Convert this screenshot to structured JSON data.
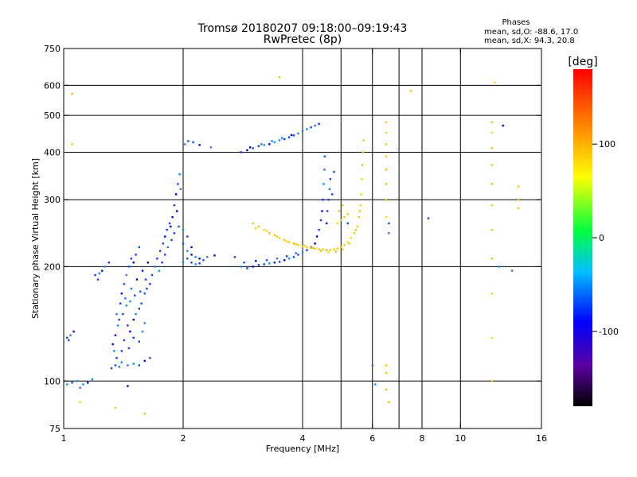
{
  "header": {
    "title_line1": "Tromsø 20180207 09:18:00–09:19:43",
    "title_line2": "RwPretec (8p)",
    "stats_title": "Phases",
    "stats_line1": "mean, sd,O: -88.6, 17.0",
    "stats_line2": "mean, sd,X:  94.3, 20.8"
  },
  "colorbar": {
    "label": "[deg]",
    "ticks": [
      "100",
      "0",
      "-100"
    ],
    "tick_values": [
      100,
      0,
      -100
    ],
    "range": [
      -180,
      180
    ]
  },
  "chart_data": {
    "type": "scatter",
    "xlabel": "Frequency [MHz]",
    "ylabel": "Stationary phase Virtual Height [km]",
    "xscale": "log",
    "yscale": "log",
    "xlim": [
      1,
      16
    ],
    "ylim": [
      75,
      750
    ],
    "xticks": [
      1,
      2,
      4,
      6,
      8,
      10,
      16
    ],
    "xtick_labels": [
      "1",
      "2",
      "4",
      "6",
      "8",
      "10",
      "16"
    ],
    "yticks": [
      75,
      100,
      200,
      300,
      400,
      500,
      600,
      750
    ],
    "ytick_labels": [
      "75",
      "100",
      "200",
      "300",
      "400",
      "500",
      "600",
      "750"
    ],
    "grid_x": [
      2,
      4,
      5,
      6,
      7,
      8,
      10
    ],
    "grid_y": [
      100,
      200,
      300,
      400,
      500,
      600
    ],
    "series": [
      {
        "trace": "O",
        "points": [
          [
            1.0,
            100
          ],
          [
            1.02,
            98
          ],
          [
            1.05,
            99
          ],
          [
            1.08,
            100
          ],
          [
            1.12,
            98
          ],
          [
            1.15,
            99
          ],
          [
            1.18,
            101
          ],
          [
            1.02,
            130
          ],
          [
            1.04,
            132
          ],
          [
            1.06,
            135
          ],
          [
            1.03,
            128
          ],
          [
            1.2,
            190
          ],
          [
            1.22,
            185
          ],
          [
            1.25,
            195
          ],
          [
            1.27,
            200
          ],
          [
            1.3,
            205
          ],
          [
            1.23,
            192
          ],
          [
            1.32,
            108
          ],
          [
            1.35,
            110
          ],
          [
            1.38,
            109
          ],
          [
            1.4,
            112
          ],
          [
            1.45,
            110
          ],
          [
            1.5,
            111
          ],
          [
            1.55,
            110
          ],
          [
            1.6,
            113
          ],
          [
            1.65,
            115
          ],
          [
            1.36,
            115
          ],
          [
            1.34,
            120
          ],
          [
            1.33,
            125
          ],
          [
            1.35,
            132
          ],
          [
            1.37,
            140
          ],
          [
            1.36,
            150
          ],
          [
            1.39,
            160
          ],
          [
            1.4,
            170
          ],
          [
            1.42,
            180
          ],
          [
            1.44,
            190
          ],
          [
            1.46,
            200
          ],
          [
            1.48,
            210
          ],
          [
            1.5,
            205
          ],
          [
            1.52,
            215
          ],
          [
            1.55,
            225
          ],
          [
            1.45,
            140
          ],
          [
            1.47,
            135
          ],
          [
            1.5,
            145
          ],
          [
            1.52,
            150
          ],
          [
            1.55,
            155
          ],
          [
            1.57,
            160
          ],
          [
            1.6,
            170
          ],
          [
            1.62,
            175
          ],
          [
            1.43,
            165
          ],
          [
            1.48,
            175
          ],
          [
            1.53,
            185
          ],
          [
            1.58,
            195
          ],
          [
            1.63,
            205
          ],
          [
            1.65,
            180
          ],
          [
            1.67,
            190
          ],
          [
            1.4,
            120
          ],
          [
            1.42,
            128
          ],
          [
            1.46,
            122
          ],
          [
            1.5,
            130
          ],
          [
            1.55,
            127
          ],
          [
            1.58,
            135
          ],
          [
            1.6,
            142
          ],
          [
            1.38,
            145
          ],
          [
            1.41,
            150
          ],
          [
            1.44,
            158
          ],
          [
            1.47,
            162
          ],
          [
            1.51,
            168
          ],
          [
            1.56,
            172
          ],
          [
            1.61,
            185
          ],
          [
            1.7,
            200
          ],
          [
            1.72,
            210
          ],
          [
            1.75,
            220
          ],
          [
            1.78,
            230
          ],
          [
            1.8,
            240
          ],
          [
            1.82,
            250
          ],
          [
            1.85,
            260
          ],
          [
            1.88,
            270
          ],
          [
            1.9,
            290
          ],
          [
            1.92,
            310
          ],
          [
            1.94,
            330
          ],
          [
            1.96,
            350
          ],
          [
            1.97,
            320
          ],
          [
            1.93,
            280
          ],
          [
            1.86,
            255
          ],
          [
            1.74,
            195
          ],
          [
            1.77,
            205
          ],
          [
            1.8,
            215
          ],
          [
            1.83,
            225
          ],
          [
            1.87,
            235
          ],
          [
            1.9,
            245
          ],
          [
            1.95,
            255
          ],
          [
            2.0,
            230
          ],
          [
            2.05,
            220
          ],
          [
            2.1,
            215
          ],
          [
            2.15,
            212
          ],
          [
            2.2,
            210
          ],
          [
            2.25,
            208
          ],
          [
            2.3,
            212
          ],
          [
            2.4,
            214
          ],
          [
            2.0,
            205
          ],
          [
            2.05,
            210
          ],
          [
            2.1,
            205
          ],
          [
            2.15,
            203
          ],
          [
            2.2,
            204
          ],
          [
            2.1,
            225
          ],
          [
            2.0,
            250
          ],
          [
            2.05,
            240
          ],
          [
            2.02,
            420
          ],
          [
            2.06,
            428
          ],
          [
            2.12,
            425
          ],
          [
            2.2,
            418
          ],
          [
            2.35,
            412
          ],
          [
            2.8,
            200
          ],
          [
            2.9,
            198
          ],
          [
            3.0,
            200
          ],
          [
            3.1,
            202
          ],
          [
            3.2,
            203
          ],
          [
            3.3,
            204
          ],
          [
            3.4,
            205
          ],
          [
            3.5,
            206
          ],
          [
            3.6,
            208
          ],
          [
            3.7,
            210
          ],
          [
            3.8,
            212
          ],
          [
            3.9,
            215
          ],
          [
            4.0,
            218
          ],
          [
            4.1,
            221
          ],
          [
            4.2,
            225
          ],
          [
            4.3,
            230
          ],
          [
            4.35,
            240
          ],
          [
            4.4,
            250
          ],
          [
            4.45,
            265
          ],
          [
            4.48,
            280
          ],
          [
            4.5,
            300
          ],
          [
            4.52,
            330
          ],
          [
            4.54,
            360
          ],
          [
            4.55,
            390
          ],
          [
            4.6,
            260
          ],
          [
            4.62,
            280
          ],
          [
            4.65,
            300
          ],
          [
            4.68,
            320
          ],
          [
            4.7,
            340
          ],
          [
            2.85,
            205
          ],
          [
            3.05,
            207
          ],
          [
            3.25,
            208
          ],
          [
            3.45,
            210
          ],
          [
            3.65,
            213
          ],
          [
            3.85,
            217
          ],
          [
            2.8,
            400
          ],
          [
            2.9,
            405
          ],
          [
            3.0,
            410
          ],
          [
            3.1,
            415
          ],
          [
            3.2,
            418
          ],
          [
            3.3,
            420
          ],
          [
            3.4,
            425
          ],
          [
            3.5,
            430
          ],
          [
            3.6,
            433
          ],
          [
            3.7,
            438
          ],
          [
            3.8,
            443
          ],
          [
            3.9,
            448
          ],
          [
            4.0,
            455
          ],
          [
            4.1,
            460
          ],
          [
            4.2,
            465
          ],
          [
            4.3,
            470
          ],
          [
            4.4,
            475
          ],
          [
            2.95,
            412
          ],
          [
            3.15,
            420
          ],
          [
            3.35,
            428
          ],
          [
            3.55,
            436
          ],
          [
            3.75,
            444
          ],
          [
            1.1,
            96
          ],
          [
            1.45,
            97
          ],
          [
            2.7,
            212
          ],
          [
            4.8,
            355
          ],
          [
            4.75,
            310
          ],
          [
            5.2,
            260
          ],
          [
            6.6,
            245
          ],
          [
            6.6,
            260
          ],
          [
            8.3,
            268
          ],
          [
            12.5,
            200
          ],
          [
            13.5,
            195
          ],
          [
            12.8,
            470
          ],
          [
            6.0,
            110
          ],
          [
            6.1,
            98
          ]
        ]
      },
      {
        "trace": "X",
        "points": [
          [
            3.0,
            260
          ],
          [
            3.1,
            255
          ],
          [
            3.2,
            250
          ],
          [
            3.3,
            245
          ],
          [
            3.4,
            242
          ],
          [
            3.5,
            238
          ],
          [
            3.6,
            235
          ],
          [
            3.7,
            232
          ],
          [
            3.8,
            230
          ],
          [
            3.9,
            228
          ],
          [
            4.0,
            226
          ],
          [
            4.1,
            225
          ],
          [
            4.2,
            224
          ],
          [
            4.3,
            223
          ],
          [
            4.4,
            222
          ],
          [
            4.5,
            222
          ],
          [
            4.6,
            221
          ],
          [
            4.7,
            221
          ],
          [
            4.8,
            222
          ],
          [
            4.9,
            223
          ],
          [
            5.0,
            225
          ],
          [
            5.1,
            228
          ],
          [
            5.2,
            232
          ],
          [
            5.3,
            238
          ],
          [
            5.4,
            245
          ],
          [
            5.5,
            255
          ],
          [
            5.55,
            270
          ],
          [
            5.6,
            290
          ],
          [
            5.62,
            310
          ],
          [
            5.64,
            340
          ],
          [
            5.66,
            370
          ],
          [
            5.68,
            400
          ],
          [
            5.7,
            430
          ],
          [
            3.05,
            252
          ],
          [
            3.25,
            248
          ],
          [
            3.45,
            240
          ],
          [
            3.65,
            233
          ],
          [
            3.85,
            229
          ],
          [
            4.05,
            227
          ],
          [
            4.25,
            224
          ],
          [
            4.45,
            220
          ],
          [
            4.65,
            218
          ],
          [
            4.85,
            219
          ],
          [
            5.05,
            222
          ],
          [
            5.25,
            230
          ],
          [
            5.45,
            250
          ],
          [
            5.58,
            280
          ],
          [
            4.9,
            260
          ],
          [
            5.0,
            265
          ],
          [
            5.1,
            270
          ],
          [
            5.2,
            275
          ],
          [
            4.95,
            280
          ],
          [
            5.05,
            290
          ],
          [
            6.5,
            270
          ],
          [
            6.5,
            300
          ],
          [
            6.5,
            330
          ],
          [
            6.5,
            360
          ],
          [
            6.5,
            390
          ],
          [
            6.5,
            420
          ],
          [
            6.5,
            450
          ],
          [
            6.5,
            480
          ],
          [
            6.5,
            110
          ],
          [
            6.5,
            105
          ],
          [
            6.5,
            95
          ],
          [
            6.6,
            88
          ],
          [
            12.0,
            100
          ],
          [
            12.0,
            130
          ],
          [
            12.0,
            170
          ],
          [
            12.0,
            210
          ],
          [
            12.0,
            250
          ],
          [
            12.0,
            290
          ],
          [
            12.0,
            330
          ],
          [
            12.0,
            370
          ],
          [
            12.0,
            410
          ],
          [
            12.0,
            450
          ],
          [
            12.0,
            480
          ],
          [
            12.2,
            610
          ],
          [
            14.0,
            300
          ],
          [
            14.0,
            285
          ],
          [
            14.0,
            325
          ],
          [
            1.1,
            88
          ],
          [
            1.35,
            85
          ],
          [
            1.6,
            82
          ],
          [
            1.05,
            570
          ],
          [
            1.05,
            420
          ],
          [
            3.5,
            630
          ],
          [
            7.5,
            580
          ]
        ]
      }
    ]
  }
}
